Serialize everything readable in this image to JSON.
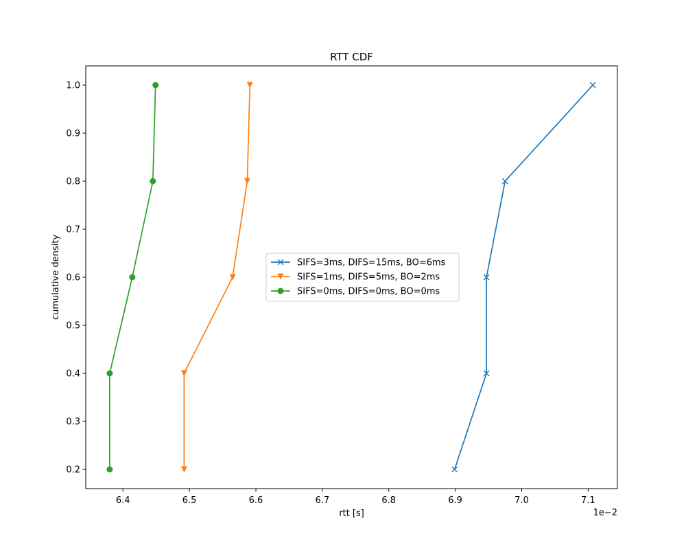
{
  "chart_data": {
    "type": "line",
    "title": "RTT CDF",
    "xlabel": "rtt [s]",
    "ylabel": "cumulative density",
    "x_offset_label": "1e−2",
    "xlim": [
      6.344,
      7.144
    ],
    "ylim": [
      0.16,
      1.04
    ],
    "xticks": [
      "6.4",
      "6.5",
      "6.6",
      "6.7",
      "6.8",
      "6.9",
      "7.0",
      "7.1"
    ],
    "yticks": [
      "0.2",
      "0.3",
      "0.4",
      "0.5",
      "0.6",
      "0.7",
      "0.8",
      "0.9",
      "1.0"
    ],
    "grid": false,
    "legend_position": "center",
    "series": [
      {
        "name": "SIFS=3ms, DIFS=15ms, BO=6ms",
        "color": "#1f77b4",
        "marker": "x",
        "x": [
          6.899,
          6.947,
          6.947,
          6.975,
          7.107
        ],
        "y": [
          0.2,
          0.4,
          0.6,
          0.8,
          1.0
        ]
      },
      {
        "name": "SIFS=1ms, DIFS=5ms, BO=2ms",
        "color": "#ff7f0e",
        "marker": "triangle-down",
        "x": [
          6.492,
          6.492,
          6.565,
          6.587,
          6.591
        ],
        "y": [
          0.2,
          0.4,
          0.6,
          0.8,
          1.0
        ]
      },
      {
        "name": "SIFS=0ms, DIFS=0ms, BO=0ms",
        "color": "#2ca02c",
        "marker": "circle",
        "x": [
          6.38,
          6.38,
          6.414,
          6.445,
          6.449
        ],
        "y": [
          0.2,
          0.4,
          0.6,
          0.8,
          1.0
        ]
      }
    ]
  }
}
